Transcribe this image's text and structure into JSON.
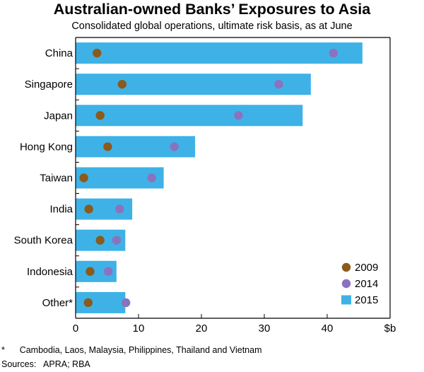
{
  "title": "Australian-owned Banks’ Exposures to Asia",
  "subtitle": "Consolidated global operations, ultimate risk basis, as at June",
  "footnote": "*      Cambodia, Laos, Malaysia, Philippines, Thailand and Vietnam",
  "sources": "Sources:   APRA; RBA",
  "colors": {
    "bar_2015": "#3eb2e6",
    "dot_2009": "#8b5a1c",
    "dot_2014": "#8b72bf",
    "axis": "#000000"
  },
  "chart_data": {
    "type": "bar",
    "orientation": "horizontal",
    "categories": [
      "China",
      "Singapore",
      "Japan",
      "Hong Kong",
      "Taiwan",
      "India",
      "South Korea",
      "Indonesia",
      "Other*"
    ],
    "series": [
      {
        "name": "2015",
        "mark": "bar",
        "values": [
          45.6,
          37.4,
          36.1,
          19.0,
          14.0,
          9.0,
          7.9,
          6.5,
          7.9
        ]
      },
      {
        "name": "2014",
        "mark": "dot",
        "values": [
          41.0,
          32.3,
          25.9,
          15.7,
          12.1,
          7.0,
          6.5,
          5.2,
          8.0
        ]
      },
      {
        "name": "2009",
        "mark": "dot",
        "values": [
          3.4,
          7.4,
          3.9,
          5.1,
          1.3,
          2.1,
          3.9,
          2.3,
          2.0
        ]
      }
    ],
    "xlim": [
      0,
      50
    ],
    "xticks": [
      "0",
      "10",
      "20",
      "30",
      "40"
    ],
    "xunit": "$b",
    "legend": [
      {
        "label": "2009",
        "kind": "dot"
      },
      {
        "label": "2014",
        "kind": "dot"
      },
      {
        "label": "2015",
        "kind": "bar"
      }
    ],
    "legend_position": "bottom-right",
    "grid": false
  }
}
